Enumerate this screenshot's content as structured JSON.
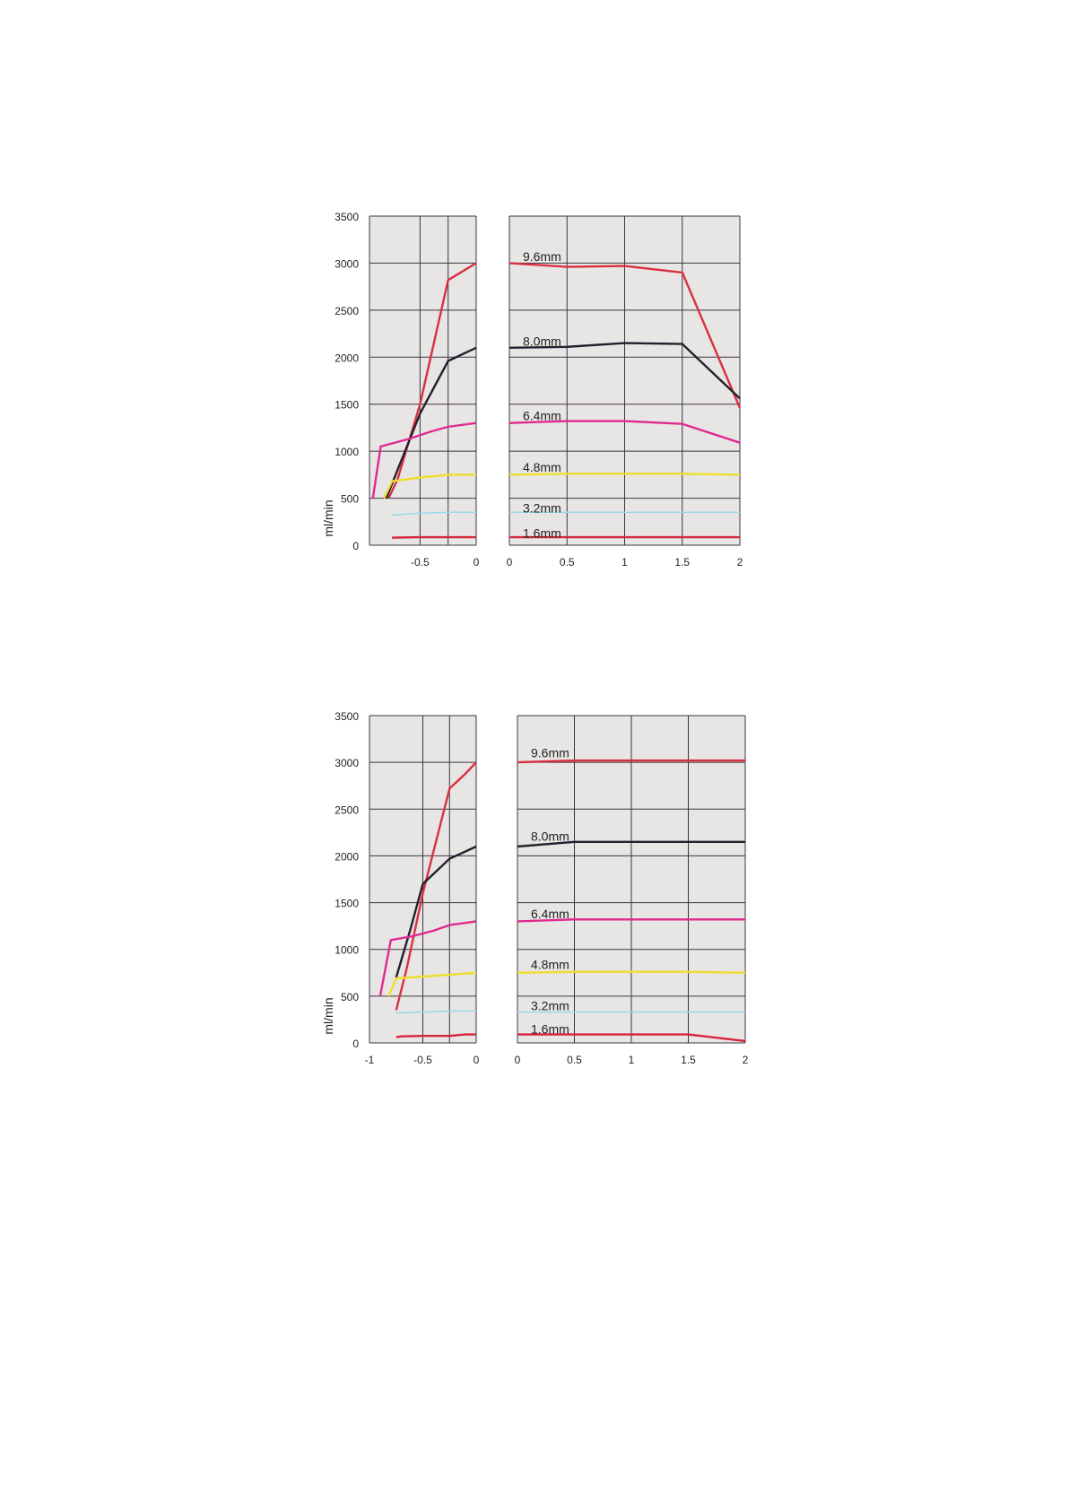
{
  "chart_data": [
    {
      "type": "line",
      "ylabel": "ml/min",
      "ylim": [
        0,
        3500
      ],
      "yticks": [
        "0",
        "500",
        "1000",
        "1500",
        "2000",
        "2500",
        "3000",
        "3500"
      ],
      "grid": true,
      "line_colors": {
        "9.6mm": "#d93040",
        "8.0mm": "#231f2e",
        "6.4mm": "#e02a90",
        "4.8mm": "#ecdf30",
        "3.2mm": "#9ad8ea",
        "1.6mm": "#d6243a"
      },
      "panels": [
        {
          "xlim": [
            -0.95,
            0
          ],
          "xticks": [
            {
              "v": -0.5,
              "label": "-0.5"
            },
            {
              "v": 0,
              "label": "0"
            }
          ],
          "xgrid": [
            -0.5,
            -0.25
          ],
          "series": [
            {
              "name": "9.6mm",
              "x": [
                -0.78,
                -0.7,
                -0.6,
                -0.5,
                -0.25,
                0
              ],
              "y": [
                500,
                700,
                1100,
                1500,
                2820,
                3000
              ]
            },
            {
              "name": "8.0mm",
              "x": [
                -0.8,
                -0.7,
                -0.5,
                -0.25,
                0
              ],
              "y": [
                500,
                800,
                1400,
                1960,
                2100
              ]
            },
            {
              "name": "6.4mm",
              "x": [
                -0.92,
                -0.85,
                -0.6,
                -0.4,
                -0.25,
                0
              ],
              "y": [
                500,
                1050,
                1130,
                1210,
                1260,
                1300
              ]
            },
            {
              "name": "4.8mm",
              "x": [
                -0.82,
                -0.75,
                -0.5,
                -0.25,
                0
              ],
              "y": [
                500,
                680,
                720,
                750,
                750
              ]
            },
            {
              "name": "3.2mm",
              "x": [
                -0.75,
                -0.5,
                -0.25,
                0
              ],
              "y": [
                320,
                340,
                350,
                350
              ]
            },
            {
              "name": "1.6mm",
              "x": [
                -0.75,
                -0.5,
                -0.25,
                0
              ],
              "y": [
                80,
                85,
                85,
                85
              ]
            }
          ]
        },
        {
          "xlim": [
            0,
            2
          ],
          "xticks": [
            {
              "v": 0,
              "label": "0"
            },
            {
              "v": 0.5,
              "label": "0.5"
            },
            {
              "v": 1,
              "label": "1"
            },
            {
              "v": 1.5,
              "label": "1.5"
            },
            {
              "v": 2,
              "label": "2"
            }
          ],
          "xgrid": [
            0.5,
            1,
            1.5
          ],
          "series": [
            {
              "name": "9.6mm",
              "x": [
                0,
                0.5,
                1,
                1.5,
                2
              ],
              "y": [
                3000,
                2960,
                2970,
                2900,
                1460
              ],
              "label": "9.6mm",
              "label_y": 3070
            },
            {
              "name": "8.0mm",
              "x": [
                0,
                0.5,
                1,
                1.5,
                2
              ],
              "y": [
                2100,
                2110,
                2150,
                2140,
                1560
              ],
              "label": "8.0mm",
              "label_y": 2170
            },
            {
              "name": "6.4mm",
              "x": [
                0,
                0.5,
                1,
                1.5,
                2
              ],
              "y": [
                1300,
                1320,
                1320,
                1290,
                1090
              ],
              "label": "6.4mm",
              "label_y": 1380
            },
            {
              "name": "4.8mm",
              "x": [
                0,
                0.5,
                1,
                1.5,
                2
              ],
              "y": [
                750,
                760,
                760,
                760,
                750
              ],
              "label": "4.8mm",
              "label_y": 830
            },
            {
              "name": "3.2mm",
              "x": [
                0,
                0.5,
                1,
                1.5,
                2
              ],
              "y": [
                350,
                350,
                350,
                350,
                350
              ],
              "label": "3.2mm",
              "label_y": 395
            },
            {
              "name": "1.6mm",
              "x": [
                0,
                0.5,
                1,
                1.5,
                2
              ],
              "y": [
                85,
                85,
                85,
                85,
                85
              ],
              "label": "1.6mm",
              "label_y": 130
            }
          ]
        }
      ]
    },
    {
      "type": "line",
      "ylabel": "ml/min",
      "ylim": [
        0,
        3500
      ],
      "yticks": [
        "0",
        "500",
        "1000",
        "1500",
        "2000",
        "2500",
        "3000",
        "3500"
      ],
      "grid": true,
      "line_colors": {
        "9.6mm": "#d93040",
        "8.0mm": "#231f2e",
        "6.4mm": "#e02a90",
        "4.8mm": "#ecdf30",
        "3.2mm": "#9ad8ea",
        "1.6mm": "#d6243a"
      },
      "panels": [
        {
          "xlim": [
            -1,
            0
          ],
          "xticks": [
            {
              "v": -1,
              "label": "-1"
            },
            {
              "v": -0.5,
              "label": "-0.5"
            },
            {
              "v": 0,
              "label": "0"
            }
          ],
          "xgrid": [
            -0.5,
            -0.25
          ],
          "series": [
            {
              "name": "9.6mm",
              "x": [
                -0.75,
                -0.65,
                -0.5,
                -0.25,
                -0.1,
                0
              ],
              "y": [
                350,
                800,
                1600,
                2720,
                2880,
                3000
              ]
            },
            {
              "name": "8.0mm",
              "x": [
                -0.75,
                -0.62,
                -0.5,
                -0.25,
                0
              ],
              "y": [
                700,
                1200,
                1700,
                1970,
                2100
              ]
            },
            {
              "name": "6.4mm",
              "x": [
                -0.9,
                -0.8,
                -0.6,
                -0.4,
                -0.25,
                0
              ],
              "y": [
                500,
                1100,
                1140,
                1200,
                1260,
                1300
              ]
            },
            {
              "name": "4.8mm",
              "x": [
                -0.82,
                -0.75,
                -0.5,
                -0.25,
                0
              ],
              "y": [
                500,
                690,
                710,
                730,
                750
              ]
            },
            {
              "name": "3.2mm",
              "x": [
                -0.75,
                -0.5,
                -0.25,
                0
              ],
              "y": [
                320,
                330,
                340,
                340
              ]
            },
            {
              "name": "1.6mm",
              "x": [
                -0.75,
                -0.7,
                -0.5,
                -0.25,
                -0.1,
                0
              ],
              "y": [
                60,
                70,
                75,
                75,
                90,
                90
              ]
            }
          ]
        },
        {
          "xlim": [
            0,
            2
          ],
          "xticks": [
            {
              "v": 0,
              "label": "0"
            },
            {
              "v": 0.5,
              "label": "0.5"
            },
            {
              "v": 1,
              "label": "1"
            },
            {
              "v": 1.5,
              "label": "1.5"
            },
            {
              "v": 2,
              "label": "2"
            }
          ],
          "xgrid": [
            0.5,
            1,
            1.5
          ],
          "series": [
            {
              "name": "9.6mm",
              "x": [
                0,
                0.5,
                1,
                1.5,
                2
              ],
              "y": [
                3000,
                3020,
                3020,
                3020,
                3020
              ],
              "label": "9.6mm",
              "label_y": 3100
            },
            {
              "name": "8.0mm",
              "x": [
                0,
                0.5,
                1,
                1.5,
                2
              ],
              "y": [
                2100,
                2150,
                2150,
                2150,
                2150
              ],
              "label": "8.0mm",
              "label_y": 2210
            },
            {
              "name": "6.4mm",
              "x": [
                0,
                0.5,
                1,
                1.5,
                2
              ],
              "y": [
                1300,
                1320,
                1320,
                1320,
                1320
              ],
              "label": "6.4mm",
              "label_y": 1380
            },
            {
              "name": "4.8mm",
              "x": [
                0,
                0.5,
                1,
                1.5,
                2
              ],
              "y": [
                750,
                760,
                760,
                760,
                750
              ],
              "label": "4.8mm",
              "label_y": 840
            },
            {
              "name": "3.2mm",
              "x": [
                0,
                0.5,
                1,
                1.5,
                2
              ],
              "y": [
                330,
                330,
                330,
                330,
                330
              ],
              "label": "3.2mm",
              "label_y": 400
            },
            {
              "name": "1.6mm",
              "x": [
                0,
                0.5,
                1,
                1.5,
                2
              ],
              "y": [
                90,
                90,
                90,
                90,
                20
              ],
              "label": "1.6mm",
              "label_y": 150
            }
          ]
        }
      ]
    }
  ]
}
